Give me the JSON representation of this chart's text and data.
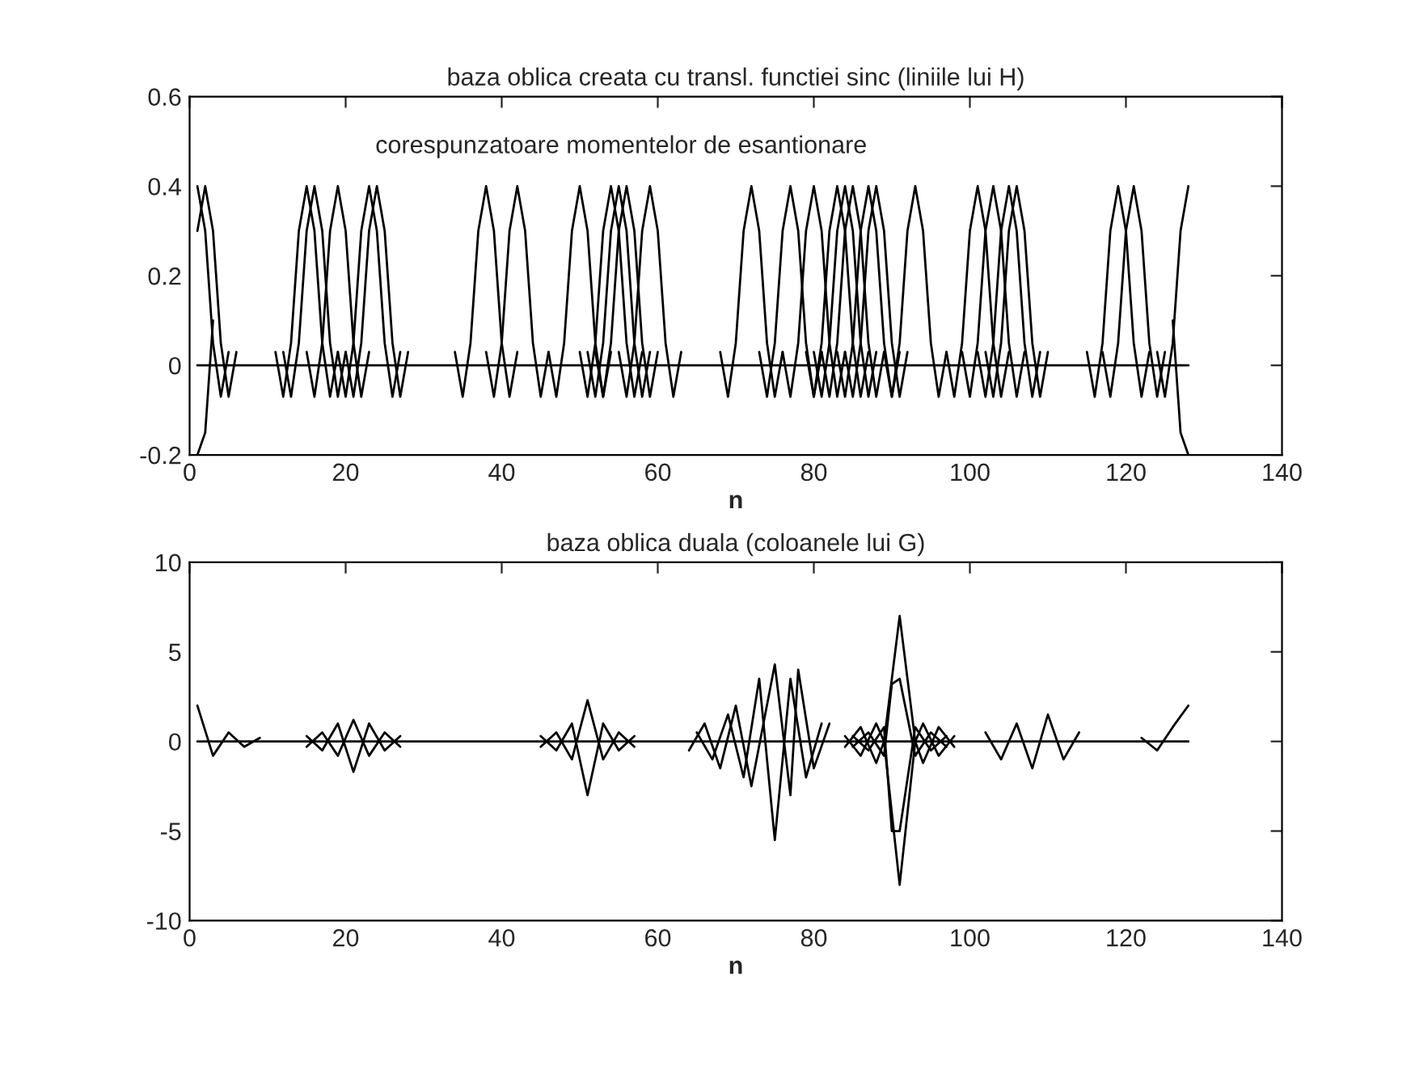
{
  "chart_data": [
    {
      "type": "line",
      "title": "baza oblica creata cu transl. functiei sinc (liniile lui H)",
      "xlabel": "n",
      "xlim": [
        0,
        140
      ],
      "xticks": [
        0,
        20,
        40,
        60,
        80,
        100,
        120,
        140
      ],
      "ylim": [
        -0.2,
        0.6
      ],
      "yticks": [
        -0.2,
        0,
        0.2,
        0.4,
        0.6
      ],
      "grid": false,
      "legend": false,
      "annotations": [
        "corespunzatoare momentelor de esantionare"
      ],
      "series": [
        {
          "color": "#000000",
          "x": [
            1,
            128
          ],
          "values": [
            0,
            0
          ]
        },
        {
          "color": "#000000",
          "x": [
            1,
            2,
            3,
            4,
            5
          ],
          "values": [
            0.4,
            0.3,
            0.05,
            -0.07,
            0.03
          ]
        },
        {
          "color": "#000000",
          "x": [
            1,
            2,
            3
          ],
          "values": [
            -0.2,
            -0.15,
            0.1
          ]
        },
        {
          "color": "#000000",
          "x": [
            1,
            2,
            3,
            4,
            5,
            6
          ],
          "values": [
            0.3,
            0.4,
            0.3,
            0.05,
            -0.07,
            0.03
          ]
        },
        {
          "color": "#000000",
          "x": [
            11,
            12,
            13,
            14,
            15,
            16,
            17,
            18,
            19
          ],
          "values": [
            0.03,
            -0.07,
            0.05,
            0.3,
            0.4,
            0.3,
            0.05,
            -0.07,
            0.03
          ]
        },
        {
          "color": "#000000",
          "x": [
            12,
            13,
            14,
            15,
            16,
            17,
            18,
            19,
            20
          ],
          "values": [
            0.03,
            -0.07,
            0.05,
            0.3,
            0.4,
            0.3,
            0.05,
            -0.07,
            0.03
          ]
        },
        {
          "color": "#000000",
          "x": [
            15,
            16,
            17,
            18,
            19,
            20,
            21,
            22,
            23
          ],
          "values": [
            0.03,
            -0.07,
            0.05,
            0.3,
            0.4,
            0.3,
            0.05,
            -0.07,
            0.03
          ]
        },
        {
          "color": "#000000",
          "x": [
            19,
            20,
            21,
            22,
            23,
            24,
            25,
            26,
            27
          ],
          "values": [
            0.03,
            -0.07,
            0.05,
            0.3,
            0.4,
            0.3,
            0.05,
            -0.07,
            0.03
          ]
        },
        {
          "color": "#000000",
          "x": [
            20,
            21,
            22,
            23,
            24,
            25,
            26,
            27,
            28
          ],
          "values": [
            0.03,
            -0.07,
            0.05,
            0.3,
            0.4,
            0.3,
            0.05,
            -0.07,
            0.03
          ]
        },
        {
          "color": "#000000",
          "x": [
            34,
            35,
            36,
            37,
            38,
            39,
            40,
            41,
            42
          ],
          "values": [
            0.03,
            -0.07,
            0.05,
            0.3,
            0.4,
            0.3,
            0.05,
            -0.07,
            0.03
          ]
        },
        {
          "color": "#000000",
          "x": [
            38,
            39,
            40,
            41,
            42,
            43,
            44,
            45,
            46
          ],
          "values": [
            0.03,
            -0.07,
            0.05,
            0.3,
            0.4,
            0.3,
            0.05,
            -0.07,
            0.03
          ]
        },
        {
          "color": "#000000",
          "x": [
            46,
            47,
            48,
            49,
            50,
            51,
            52,
            53,
            54
          ],
          "values": [
            0.03,
            -0.07,
            0.05,
            0.3,
            0.4,
            0.3,
            0.05,
            -0.07,
            0.03
          ]
        },
        {
          "color": "#000000",
          "x": [
            50,
            51,
            52,
            53,
            54,
            55,
            56,
            57,
            58
          ],
          "values": [
            0.03,
            -0.07,
            0.05,
            0.3,
            0.4,
            0.3,
            0.05,
            -0.07,
            0.03
          ]
        },
        {
          "color": "#000000",
          "x": [
            51,
            52,
            53,
            54,
            55,
            56,
            57,
            58,
            59
          ],
          "values": [
            0.03,
            -0.07,
            0.05,
            0.3,
            0.4,
            0.3,
            0.05,
            -0.07,
            0.03
          ]
        },
        {
          "color": "#000000",
          "x": [
            52,
            53,
            54,
            55,
            56,
            57,
            58,
            59,
            60
          ],
          "values": [
            0.03,
            -0.07,
            0.05,
            0.3,
            0.4,
            0.3,
            0.05,
            -0.07,
            0.03
          ]
        },
        {
          "color": "#000000",
          "x": [
            55,
            56,
            57,
            58,
            59,
            60,
            61,
            62,
            63
          ],
          "values": [
            0.03,
            -0.07,
            0.05,
            0.3,
            0.4,
            0.3,
            0.05,
            -0.07,
            0.03
          ]
        },
        {
          "color": "#000000",
          "x": [
            68,
            69,
            70,
            71,
            72,
            73,
            74,
            75,
            76
          ],
          "values": [
            0.03,
            -0.07,
            0.05,
            0.3,
            0.4,
            0.3,
            0.05,
            -0.07,
            0.03
          ]
        },
        {
          "color": "#000000",
          "x": [
            73,
            74,
            75,
            76,
            77,
            78,
            79,
            80,
            81
          ],
          "values": [
            0.03,
            -0.07,
            0.05,
            0.3,
            0.4,
            0.3,
            0.05,
            -0.07,
            0.03
          ]
        },
        {
          "color": "#000000",
          "x": [
            76,
            77,
            78,
            79,
            80,
            81,
            82,
            83,
            84
          ],
          "values": [
            0.03,
            -0.07,
            0.05,
            0.3,
            0.4,
            0.3,
            0.05,
            -0.07,
            0.03
          ]
        },
        {
          "color": "#000000",
          "x": [
            79,
            80,
            81,
            82,
            83,
            84,
            85,
            86,
            87
          ],
          "values": [
            0.03,
            -0.07,
            0.05,
            0.3,
            0.4,
            0.3,
            0.05,
            -0.07,
            0.03
          ]
        },
        {
          "color": "#000000",
          "x": [
            80,
            81,
            82,
            83,
            84,
            85,
            86,
            87,
            88
          ],
          "values": [
            0.03,
            -0.07,
            0.05,
            0.3,
            0.4,
            0.3,
            0.05,
            -0.07,
            0.03
          ]
        },
        {
          "color": "#000000",
          "x": [
            81,
            82,
            83,
            84,
            85,
            86,
            87,
            88,
            89
          ],
          "values": [
            0.03,
            -0.07,
            0.05,
            0.3,
            0.4,
            0.3,
            0.05,
            -0.07,
            0.03
          ]
        },
        {
          "color": "#000000",
          "x": [
            83,
            84,
            85,
            86,
            87,
            88,
            89,
            90,
            91
          ],
          "values": [
            0.03,
            -0.07,
            0.05,
            0.3,
            0.4,
            0.3,
            0.05,
            -0.07,
            0.03
          ]
        },
        {
          "color": "#000000",
          "x": [
            84,
            85,
            86,
            87,
            88,
            89,
            90,
            91,
            92
          ],
          "values": [
            0.03,
            -0.07,
            0.05,
            0.3,
            0.4,
            0.3,
            0.05,
            -0.07,
            0.03
          ]
        },
        {
          "color": "#000000",
          "x": [
            89,
            90,
            91,
            92,
            93,
            94,
            95,
            96,
            97
          ],
          "values": [
            0.03,
            -0.07,
            0.05,
            0.3,
            0.4,
            0.3,
            0.05,
            -0.07,
            0.03
          ]
        },
        {
          "color": "#000000",
          "x": [
            97,
            98,
            99,
            100,
            101,
            102,
            103,
            104,
            105
          ],
          "values": [
            0.03,
            -0.07,
            0.05,
            0.3,
            0.4,
            0.3,
            0.05,
            -0.07,
            0.03
          ]
        },
        {
          "color": "#000000",
          "x": [
            99,
            100,
            101,
            102,
            103,
            104,
            105,
            106,
            107
          ],
          "values": [
            0.03,
            -0.07,
            0.05,
            0.3,
            0.4,
            0.3,
            0.05,
            -0.07,
            0.03
          ]
        },
        {
          "color": "#000000",
          "x": [
            101,
            102,
            103,
            104,
            105,
            106,
            107,
            108,
            109
          ],
          "values": [
            0.03,
            -0.07,
            0.05,
            0.3,
            0.4,
            0.3,
            0.05,
            -0.07,
            0.03
          ]
        },
        {
          "color": "#000000",
          "x": [
            102,
            103,
            104,
            105,
            106,
            107,
            108,
            109,
            110
          ],
          "values": [
            0.03,
            -0.07,
            0.05,
            0.3,
            0.4,
            0.3,
            0.05,
            -0.07,
            0.03
          ]
        },
        {
          "color": "#000000",
          "x": [
            115,
            116,
            117,
            118,
            119,
            120,
            121,
            122,
            123
          ],
          "values": [
            0.03,
            -0.07,
            0.05,
            0.3,
            0.4,
            0.3,
            0.05,
            -0.07,
            0.03
          ]
        },
        {
          "color": "#000000",
          "x": [
            117,
            118,
            119,
            120,
            121,
            122,
            123,
            124,
            125
          ],
          "values": [
            0.03,
            -0.07,
            0.05,
            0.3,
            0.4,
            0.3,
            0.05,
            -0.07,
            0.03
          ]
        },
        {
          "color": "#000000",
          "x": [
            124,
            125,
            126,
            127,
            128
          ],
          "values": [
            0.03,
            -0.07,
            0.05,
            0.3,
            0.4
          ]
        },
        {
          "color": "#000000",
          "x": [
            126,
            127,
            128
          ],
          "values": [
            0.1,
            -0.15,
            -0.2
          ]
        }
      ]
    },
    {
      "type": "line",
      "title": "baza oblica duala (coloanele lui G)",
      "xlabel": "n",
      "xlim": [
        0,
        140
      ],
      "xticks": [
        0,
        20,
        40,
        60,
        80,
        100,
        120,
        140
      ],
      "ylim": [
        -10,
        10
      ],
      "yticks": [
        -10,
        -5,
        0,
        5,
        10
      ],
      "grid": false,
      "legend": false,
      "series": [
        {
          "color": "#000000",
          "x": [
            1,
            128
          ],
          "values": [
            0,
            0
          ]
        },
        {
          "color": "#000000",
          "x": [
            1,
            3,
            5,
            7,
            9
          ],
          "values": [
            2,
            -0.8,
            0.5,
            -0.3,
            0.2
          ]
        },
        {
          "color": "#000000",
          "x": [
            15,
            17,
            19,
            21,
            23,
            25,
            27
          ],
          "values": [
            0.3,
            -0.5,
            1,
            -1.7,
            1,
            -0.5,
            0.3
          ]
        },
        {
          "color": "#000000",
          "x": [
            15,
            17,
            19,
            21,
            23,
            25,
            27
          ],
          "values": [
            -0.3,
            0.5,
            -0.8,
            1.2,
            -0.8,
            0.5,
            -0.3
          ]
        },
        {
          "color": "#000000",
          "x": [
            45,
            47,
            49,
            51,
            53,
            55,
            57
          ],
          "values": [
            0.3,
            -0.5,
            1,
            -3,
            1,
            -0.5,
            0.3
          ]
        },
        {
          "color": "#000000",
          "x": [
            45,
            47,
            49,
            51,
            53,
            55,
            57
          ],
          "values": [
            -0.3,
            0.5,
            -1,
            2.3,
            -1,
            0.5,
            -0.3
          ]
        },
        {
          "color": "#000000",
          "x": [
            65,
            67,
            69,
            71,
            73,
            75,
            77,
            79,
            81
          ],
          "values": [
            0.5,
            -1,
            1.5,
            -2,
            3.5,
            -5.5,
            3.5,
            -2,
            1
          ]
        },
        {
          "color": "#000000",
          "x": [
            64,
            66,
            68,
            70,
            72,
            75,
            77,
            78,
            80,
            82
          ],
          "values": [
            -0.5,
            1,
            -1.5,
            2,
            -2.5,
            4.3,
            -3,
            4,
            -1.5,
            1
          ]
        },
        {
          "color": "#000000",
          "x": [
            84,
            86,
            88,
            89,
            91,
            93,
            94,
            96,
            98
          ],
          "values": [
            0.3,
            -0.8,
            1,
            0,
            7,
            0,
            1,
            -0.8,
            0.3
          ]
        },
        {
          "color": "#000000",
          "x": [
            84,
            86,
            88,
            89,
            91,
            93,
            94,
            96,
            98
          ],
          "values": [
            -0.3,
            0.8,
            -1.2,
            0,
            -8,
            0,
            -1.2,
            0.8,
            -0.3
          ]
        },
        {
          "color": "#000000",
          "x": [
            85,
            87,
            89,
            90,
            91,
            93,
            95,
            97
          ],
          "values": [
            -0.3,
            0.5,
            -0.8,
            3.2,
            3.5,
            -0.8,
            0.5,
            -0.3
          ]
        },
        {
          "color": "#000000",
          "x": [
            85,
            87,
            89,
            90,
            91,
            93,
            95,
            97
          ],
          "values": [
            0.3,
            -0.5,
            0.8,
            -5,
            -5,
            0.8,
            -0.5,
            0.3
          ]
        },
        {
          "color": "#000000",
          "x": [
            102,
            104,
            106,
            108,
            110,
            112,
            114
          ],
          "values": [
            0.5,
            -1,
            1,
            -1.5,
            1.5,
            -1,
            0.5
          ]
        },
        {
          "color": "#000000",
          "x": [
            122,
            124,
            126,
            128
          ],
          "values": [
            0.2,
            -0.5,
            0.8,
            2
          ]
        }
      ]
    }
  ]
}
